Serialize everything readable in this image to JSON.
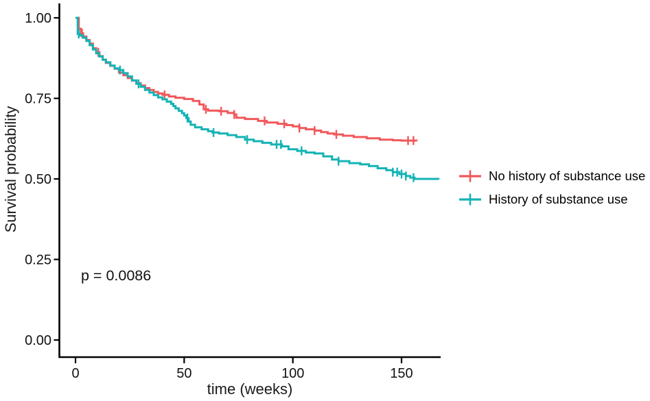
{
  "chart_data": {
    "type": "line",
    "subtype": "kaplan-meier-step-survival",
    "title": "",
    "xlabel": "time (weeks)",
    "ylabel": "Survival probability",
    "xlim": [
      0,
      168
    ],
    "ylim": [
      0.0,
      1.0
    ],
    "grid": false,
    "legend_position": "right-center",
    "annotation": {
      "text": "p = 0.0086"
    },
    "x_ticks": {
      "values": [
        0,
        50,
        100,
        150
      ],
      "labels": [
        "0",
        "50",
        "100",
        "150"
      ]
    },
    "y_ticks": {
      "values": [
        0.0,
        0.25,
        0.5,
        0.75,
        1.0
      ],
      "labels": [
        "0.00",
        "0.25",
        "0.50",
        "0.75",
        "1.00"
      ]
    },
    "censor_mark": "plus-tick",
    "series": [
      {
        "name": "No history of substance use",
        "color": "#F0585B",
        "points": [
          [
            0,
            1.0
          ],
          [
            1.5,
            0.966
          ],
          [
            2.5,
            0.952
          ],
          [
            3.5,
            0.942
          ],
          [
            5,
            0.931
          ],
          [
            6.5,
            0.92
          ],
          [
            8,
            0.906
          ],
          [
            9.5,
            0.893
          ],
          [
            11,
            0.881
          ],
          [
            12.5,
            0.87
          ],
          [
            14,
            0.86
          ],
          [
            16,
            0.851
          ],
          [
            18,
            0.842
          ],
          [
            20,
            0.83
          ],
          [
            22,
            0.822
          ],
          [
            24,
            0.813
          ],
          [
            26,
            0.805
          ],
          [
            28,
            0.797
          ],
          [
            30,
            0.79
          ],
          [
            32,
            0.782
          ],
          [
            34,
            0.776
          ],
          [
            36,
            0.77
          ],
          [
            38,
            0.765
          ],
          [
            40,
            0.761
          ],
          [
            43,
            0.756
          ],
          [
            46,
            0.752
          ],
          [
            50,
            0.748
          ],
          [
            54,
            0.742
          ],
          [
            57,
            0.731
          ],
          [
            59,
            0.716
          ],
          [
            61,
            0.712
          ],
          [
            66,
            0.71
          ],
          [
            70,
            0.705
          ],
          [
            73,
            0.7
          ],
          [
            74,
            0.69
          ],
          [
            78,
            0.686
          ],
          [
            84,
            0.68
          ],
          [
            88,
            0.675
          ],
          [
            93,
            0.671
          ],
          [
            97,
            0.667
          ],
          [
            100,
            0.663
          ],
          [
            103,
            0.658
          ],
          [
            106,
            0.654
          ],
          [
            110,
            0.65
          ],
          [
            113,
            0.645
          ],
          [
            116,
            0.641
          ],
          [
            119,
            0.638
          ],
          [
            123,
            0.634
          ],
          [
            128,
            0.63
          ],
          [
            134,
            0.626
          ],
          [
            140,
            0.622
          ],
          [
            146,
            0.62
          ],
          [
            150,
            0.619
          ],
          [
            157,
            0.618
          ]
        ],
        "censor_weeks": [
          3,
          10.5,
          41,
          60,
          67,
          73,
          87,
          96,
          103,
          110,
          120,
          153,
          155.5
        ]
      },
      {
        "name": "History of substance use",
        "color": "#14B3B5",
        "points": [
          [
            0,
            1.0
          ],
          [
            1,
            0.95
          ],
          [
            2,
            0.945
          ],
          [
            3.5,
            0.938
          ],
          [
            5,
            0.928
          ],
          [
            6.5,
            0.915
          ],
          [
            8,
            0.902
          ],
          [
            9.5,
            0.89
          ],
          [
            11,
            0.88
          ],
          [
            12.5,
            0.87
          ],
          [
            14,
            0.862
          ],
          [
            16,
            0.852
          ],
          [
            18,
            0.843
          ],
          [
            20,
            0.838
          ],
          [
            22,
            0.828
          ],
          [
            24,
            0.818
          ],
          [
            26,
            0.806
          ],
          [
            28,
            0.795
          ],
          [
            30,
            0.786
          ],
          [
            32,
            0.776
          ],
          [
            34,
            0.768
          ],
          [
            36,
            0.76
          ],
          [
            38,
            0.753
          ],
          [
            40,
            0.747
          ],
          [
            42,
            0.74
          ],
          [
            44,
            0.733
          ],
          [
            45,
            0.726
          ],
          [
            46,
            0.719
          ],
          [
            47.5,
            0.711
          ],
          [
            49,
            0.704
          ],
          [
            50,
            0.697
          ],
          [
            51,
            0.689
          ],
          [
            52,
            0.678
          ],
          [
            53,
            0.668
          ],
          [
            55,
            0.66
          ],
          [
            58,
            0.654
          ],
          [
            61,
            0.648
          ],
          [
            63,
            0.644
          ],
          [
            66,
            0.641
          ],
          [
            70,
            0.636
          ],
          [
            74,
            0.63
          ],
          [
            78,
            0.622
          ],
          [
            82,
            0.617
          ],
          [
            86,
            0.612
          ],
          [
            90,
            0.607
          ],
          [
            95,
            0.601
          ],
          [
            98,
            0.592
          ],
          [
            102,
            0.587
          ],
          [
            106,
            0.582
          ],
          [
            110,
            0.579
          ],
          [
            114,
            0.57
          ],
          [
            118,
            0.56
          ],
          [
            121,
            0.555
          ],
          [
            126,
            0.549
          ],
          [
            131,
            0.545
          ],
          [
            135,
            0.54
          ],
          [
            139,
            0.533
          ],
          [
            143,
            0.527
          ],
          [
            146,
            0.521
          ],
          [
            149,
            0.515
          ],
          [
            152,
            0.509
          ],
          [
            154,
            0.504
          ],
          [
            156,
            0.5
          ],
          [
            167,
            0.498
          ]
        ],
        "censor_weeks": [
          1.5,
          20.5,
          29,
          51.5,
          63.5,
          79,
          92.5,
          94.5,
          104,
          121,
          146,
          148,
          150,
          152,
          155.5
        ]
      }
    ]
  }
}
